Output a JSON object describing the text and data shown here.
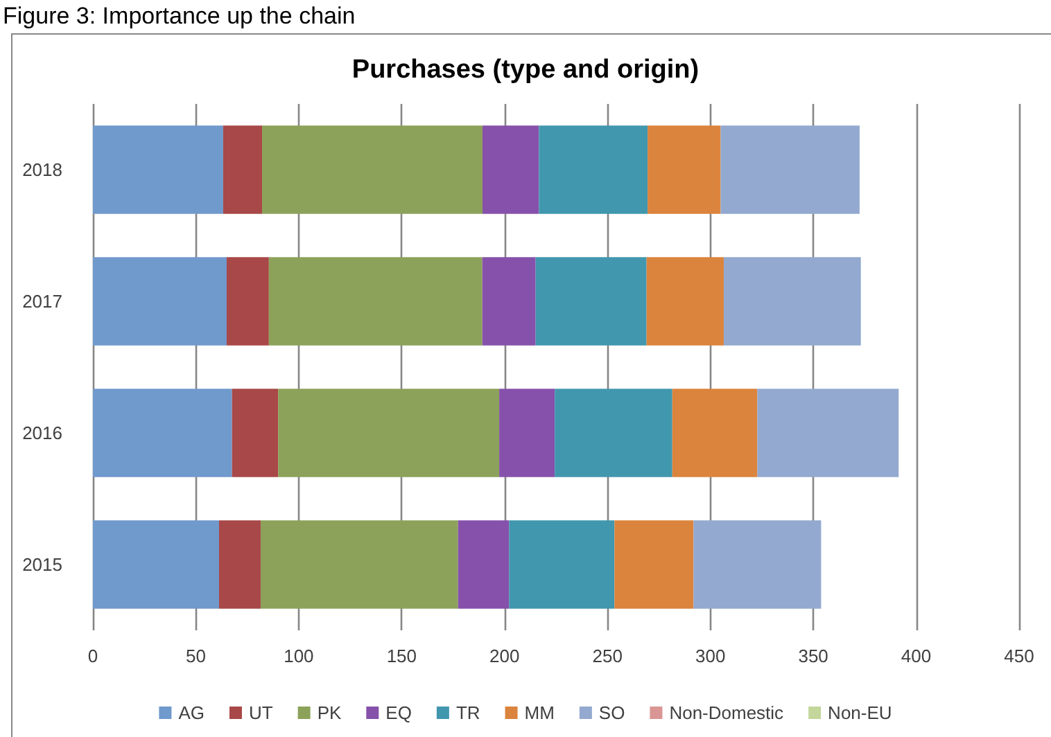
{
  "chart_data": {
    "type": "bar",
    "orientation": "horizontal",
    "stacked": true,
    "title": "Purchases (type and origin)",
    "annotations": [
      "Figure 3: Importance up the chain"
    ],
    "categories": [
      "2018",
      "2017",
      "2016",
      "2015"
    ],
    "series": [
      {
        "name": "AG",
        "color": "#7099cc",
        "values": [
          63.3,
          65,
          67.6,
          61.3
        ]
      },
      {
        "name": "UT",
        "color": "#a84848",
        "values": [
          18.9,
          20.5,
          22.4,
          20.2
        ]
      },
      {
        "name": "PK",
        "color": "#8ca25a",
        "values": [
          107.1,
          103.7,
          107.4,
          95.9
        ]
      },
      {
        "name": "EQ",
        "color": "#8651ab",
        "values": [
          27.4,
          25.9,
          27,
          24.8
        ]
      },
      {
        "name": "TR",
        "color": "#4197ae",
        "values": [
          52.8,
          53.9,
          57.1,
          51.2
        ]
      },
      {
        "name": "MM",
        "color": "#db843d",
        "values": [
          35.5,
          37.5,
          41.3,
          38.4
        ]
      },
      {
        "name": "SO",
        "color": "#93a9cf",
        "values": [
          67.5,
          66.6,
          68.7,
          62
        ]
      },
      {
        "name": "Non-Domestic",
        "color": "#d99694",
        "values": [
          null,
          null,
          null,
          null
        ]
      },
      {
        "name": "Non-EU",
        "color": "#c3d69b",
        "values": [
          null,
          null,
          null,
          null
        ]
      }
    ],
    "xlim": [
      0,
      450
    ],
    "xticks": [
      0,
      50,
      100,
      150,
      200,
      250,
      300,
      350,
      400,
      450
    ],
    "grid": "x",
    "legend": "bottom"
  }
}
